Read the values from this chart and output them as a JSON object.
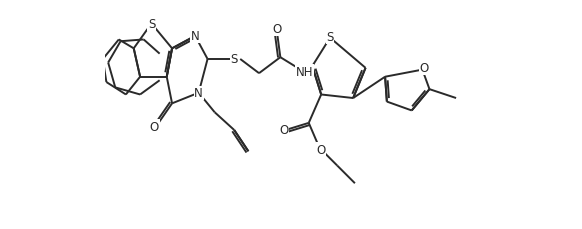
{
  "background": "#ffffff",
  "line_color": "#2a2a2a",
  "line_width": 1.4,
  "font_size": 8.5,
  "xlim": [
    0,
    10.5
  ],
  "ylim": [
    2.8,
    9.2
  ]
}
